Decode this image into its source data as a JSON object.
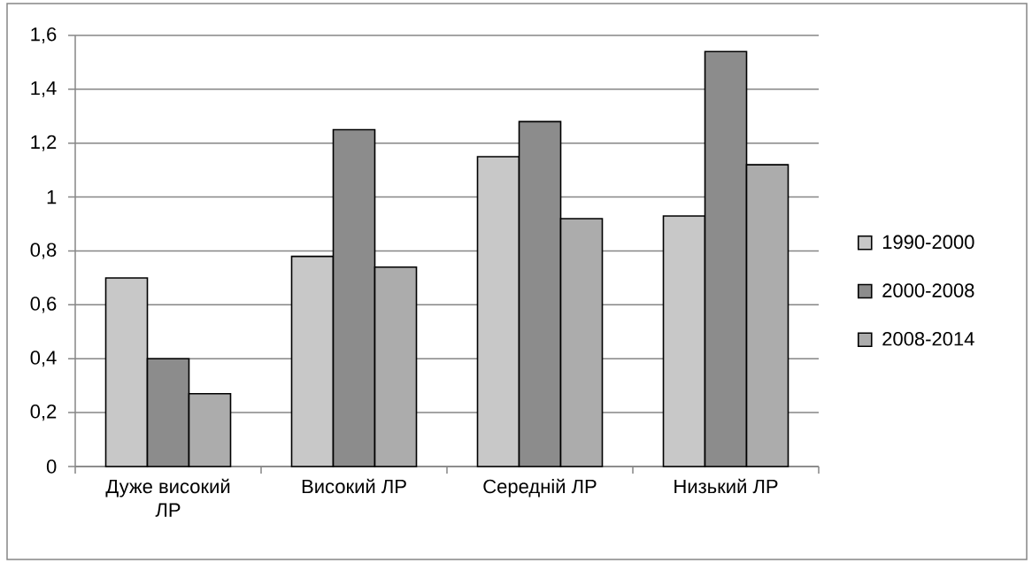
{
  "chart_data": {
    "type": "bar",
    "categories": [
      "Дуже високий ЛР",
      "Високий ЛР",
      "Середній ЛР",
      "Низький ЛР"
    ],
    "series": [
      {
        "name": "1990-2000",
        "color": "#c8c8c8",
        "values": [
          0.7,
          0.78,
          1.15,
          0.93
        ]
      },
      {
        "name": "2000-2008",
        "color": "#8c8c8c",
        "values": [
          0.4,
          1.25,
          1.28,
          1.54
        ]
      },
      {
        "name": "2008-2014",
        "color": "#acacac",
        "values": [
          0.27,
          0.74,
          0.92,
          1.12
        ]
      }
    ],
    "ylim": [
      0,
      1.6
    ],
    "yticks": [
      0,
      {
        "value": 0.2,
        "label": "0,2"
      },
      {
        "value": 0.4,
        "label": "0,4"
      },
      {
        "value": 0.6,
        "label": "0,6"
      },
      {
        "value": 0.8,
        "label": "0,8"
      },
      1,
      {
        "value": 1.2,
        "label": "1,2"
      },
      {
        "value": 1.4,
        "label": "1,4"
      },
      {
        "value": 1.6,
        "label": "1,6"
      }
    ],
    "grid": "y",
    "legend": "right"
  }
}
